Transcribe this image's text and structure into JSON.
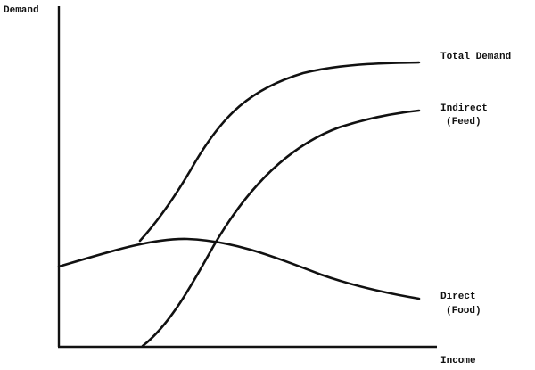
{
  "axes": {
    "y_label": "Demand",
    "x_label": "Income"
  },
  "curves": {
    "total": {
      "label": "Total Demand"
    },
    "indirect": {
      "label_line1": "Indirect",
      "label_line2": "(Feed)"
    },
    "direct": {
      "label_line1": "Direct",
      "label_line2": "(Food)"
    }
  },
  "colors": {
    "ink": "#111111",
    "background": "#ffffff"
  }
}
